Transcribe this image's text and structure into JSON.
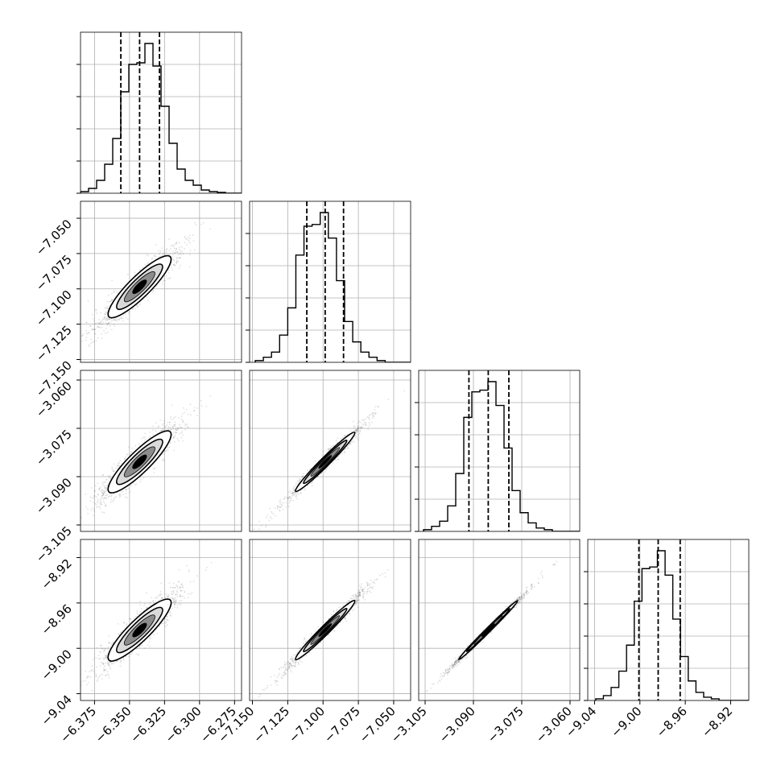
{
  "chart_data": {
    "type": "corner",
    "parameters": [
      {
        "range": [
          -6.385,
          -6.27
        ],
        "ticks": [
          -6.375,
          -6.35,
          -6.325,
          -6.3,
          -6.275
        ],
        "tick_labels": [
          "−6.375",
          "−6.350",
          "−6.325",
          "−6.300",
          "−6.275"
        ],
        "quantiles": [
          -6.3562,
          -6.3428,
          -6.3286
        ],
        "hist_edges_start": -6.385,
        "hist_bin_width": 0.00575,
        "hist_counts": [
          0.01,
          0.03,
          0.08,
          0.18,
          0.34,
          0.63,
          0.8,
          0.81,
          0.93,
          0.79,
          0.54,
          0.31,
          0.15,
          0.08,
          0.05,
          0.02,
          0.01,
          0.005,
          0,
          0
        ]
      },
      {
        "range": [
          -7.152,
          -7.038
        ],
        "ticks": [
          -7.15,
          -7.125,
          -7.1,
          -7.075,
          -7.05
        ],
        "tick_labels": [
          "−7.150",
          "−7.125",
          "−7.100",
          "−7.075",
          "−7.050"
        ],
        "quantiles": [
          -7.1115,
          -7.0985,
          -7.0855
        ],
        "hist_edges_start": -7.148,
        "hist_bin_width": 0.00575,
        "hist_counts": [
          0.01,
          0.03,
          0.06,
          0.16,
          0.32,
          0.63,
          0.8,
          0.81,
          0.88,
          0.73,
          0.48,
          0.24,
          0.12,
          0.06,
          0.03,
          0.01,
          0,
          0,
          0,
          0
        ]
      },
      {
        "range": [
          -3.107,
          -3.057
        ],
        "ticks": [
          -3.105,
          -3.09,
          -3.075,
          -3.06
        ],
        "tick_labels": [
          "−3.105",
          "−3.090",
          "−3.075",
          "−3.060"
        ],
        "quantiles": [
          -3.0914,
          -3.0854,
          -3.079
        ],
        "hist_edges_start": -3.1055,
        "hist_bin_width": 0.0025,
        "hist_counts": [
          0.01,
          0.03,
          0.06,
          0.15,
          0.34,
          0.67,
          0.82,
          0.83,
          0.88,
          0.74,
          0.49,
          0.24,
          0.11,
          0.05,
          0.02,
          0.01,
          0,
          0,
          0,
          0
        ]
      },
      {
        "range": [
          -9.046,
          -8.904
        ],
        "ticks": [
          -9.04,
          -9.0,
          -8.96,
          -8.92
        ],
        "tick_labels": [
          "−9.04",
          "−9.00",
          "−8.96",
          "−8.92"
        ],
        "quantiles": [
          -9.0009,
          -8.9839,
          -8.9645
        ],
        "hist_edges_start": -9.039,
        "hist_bin_width": 0.0068,
        "hist_counts": [
          0.01,
          0.03,
          0.08,
          0.18,
          0.34,
          0.61,
          0.81,
          0.82,
          0.92,
          0.77,
          0.5,
          0.27,
          0.12,
          0.05,
          0.02,
          0.01,
          0,
          0,
          0,
          0
        ]
      }
    ],
    "pairs": [
      {
        "x": 0,
        "y": 1,
        "center": [
          -6.3428,
          -7.0985
        ],
        "slope": 0.975,
        "width_frac": 0.12,
        "density_len_frac": 0.72
      },
      {
        "x": 0,
        "y": 2,
        "center": [
          -6.3428,
          -3.0854
        ],
        "slope": 0.426,
        "width_frac": 0.12,
        "density_len_frac": 0.72
      },
      {
        "x": 1,
        "y": 2,
        "center": [
          -7.0985,
          -3.0854
        ],
        "slope": 0.437,
        "width_frac": 0.05,
        "density_len_frac": 0.7
      },
      {
        "x": 0,
        "y": 3,
        "center": [
          -6.3428,
          -8.9839
        ],
        "slope": 1.21,
        "width_frac": 0.12,
        "density_len_frac": 0.72
      },
      {
        "x": 1,
        "y": 3,
        "center": [
          -7.0985,
          -8.9839
        ],
        "slope": 1.24,
        "width_frac": 0.05,
        "density_len_frac": 0.7
      },
      {
        "x": 2,
        "y": 3,
        "center": [
          -3.0854,
          -8.9839
        ],
        "slope": 2.84,
        "width_frac": 0.025,
        "density_len_frac": 0.7
      }
    ],
    "grid": true,
    "line_color": "#000000",
    "scatter_color": "#000000",
    "contour_fill_levels": [
      "#ffffff",
      "#d9d9d9",
      "#8c8c8c",
      "#000000"
    ]
  }
}
